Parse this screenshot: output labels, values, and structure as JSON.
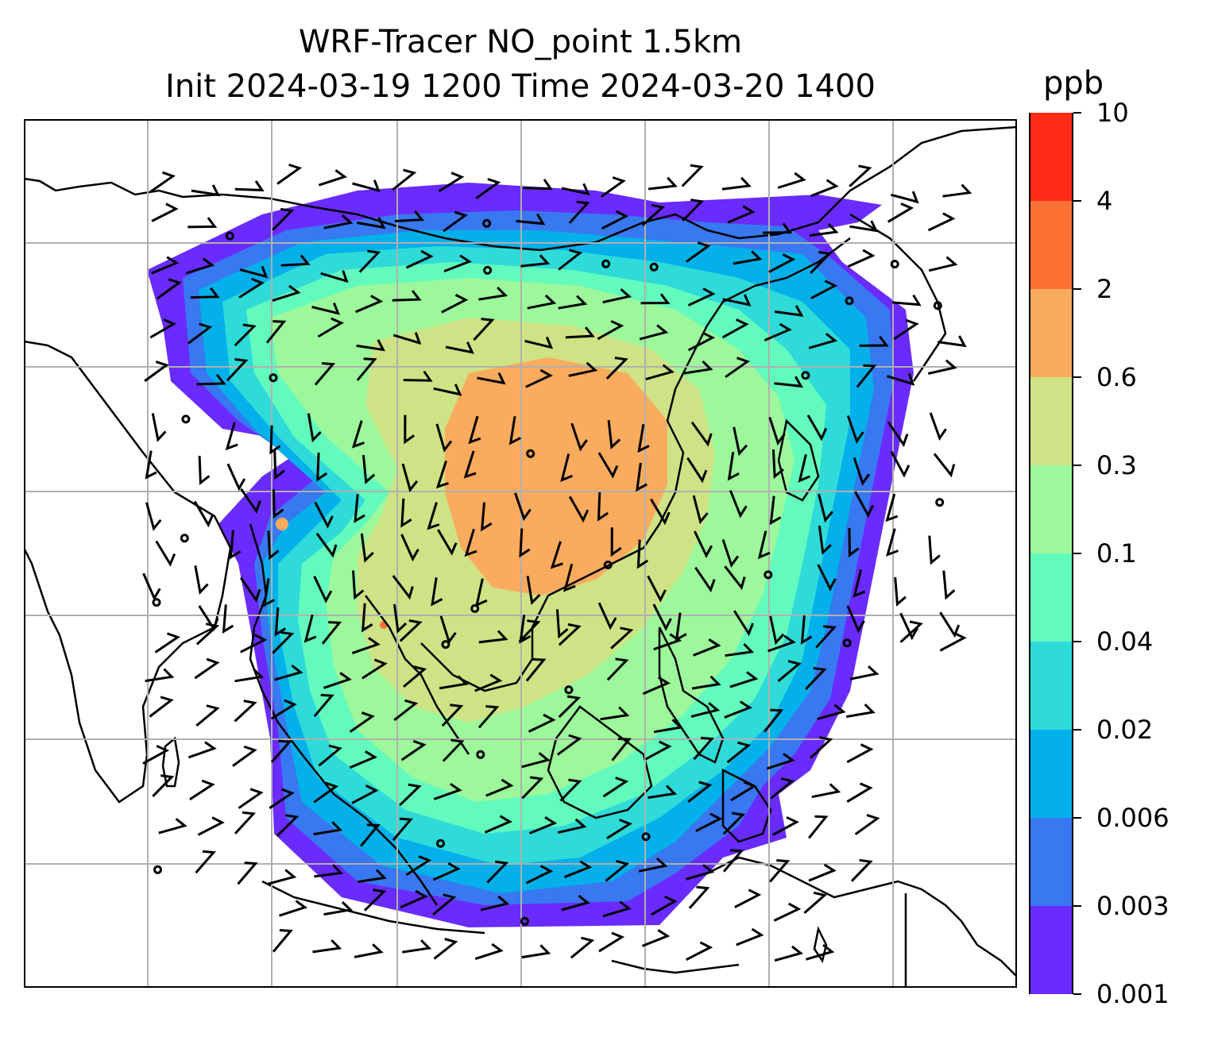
{
  "title": {
    "line1": "WRF-Tracer NO_point 1.5km",
    "line2": "Init 2024-03-19 1200 Time 2024-03-20 1400"
  },
  "colorbar": {
    "unit": "ppb",
    "levels": [
      "0.001",
      "0.003",
      "0.006",
      "0.02",
      "0.04",
      "0.1",
      "0.3",
      "0.6",
      "2",
      "4",
      "10"
    ],
    "colors": [
      "#6a2bff",
      "#3878f0",
      "#04b0ea",
      "#2edbd8",
      "#63fbbd",
      "#9cf89b",
      "#cde385",
      "#fbab5e",
      "#fd7034",
      "#fe2b16"
    ]
  },
  "map": {
    "grid_color": "#b0b0b0",
    "coastline_color": "#000000",
    "wind_barb_color": "#000000",
    "land_color": "#ffffff"
  }
}
